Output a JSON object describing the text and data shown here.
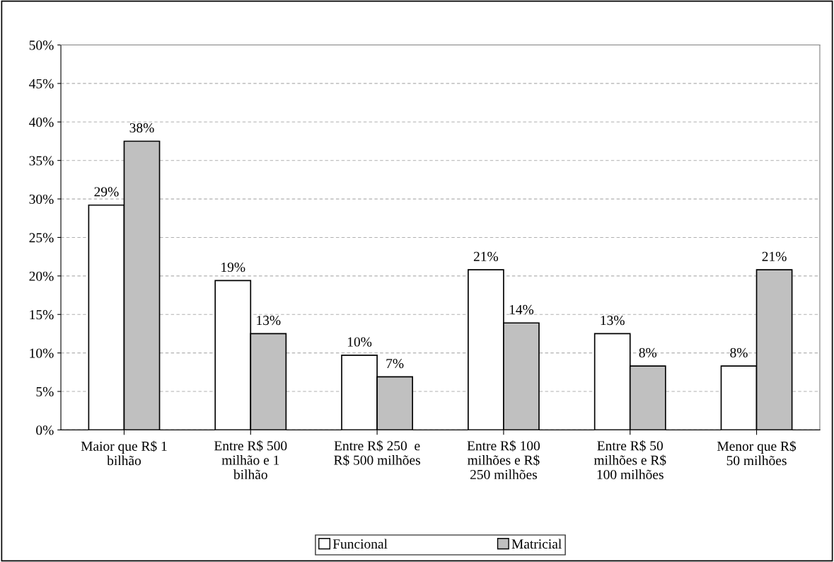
{
  "chart_data": {
    "type": "bar",
    "categories": [
      "Maior que R$ 1\nbilhão",
      "Entre R$ 500\nmilhão e 1\nbilhão",
      "Entre R$ 250  e\nR$ 500 milhões",
      "Entre R$ 100\nmilhões e R$\n250 milhões",
      "Entre R$ 50\nmilhões e R$\n100 milhões",
      "Menor que R$\n50 milhões"
    ],
    "series": [
      {
        "name": "Funcional",
        "color": "#ffffff",
        "values": [
          29.2,
          19.4,
          9.7,
          20.8,
          12.5,
          8.3
        ],
        "value_labels": [
          "29%",
          "19%",
          "10%",
          "21%",
          "13%",
          "8%"
        ]
      },
      {
        "name": "Matricial",
        "color": "#c0c0c0",
        "values": [
          37.5,
          12.5,
          6.9,
          13.9,
          8.3,
          20.8
        ],
        "value_labels": [
          "38%",
          "13%",
          "7%",
          "14%",
          "8%",
          "21%"
        ]
      }
    ],
    "ylim": [
      0,
      50
    ],
    "yticks": [
      {
        "value": 0,
        "label": "0%"
      },
      {
        "value": 5,
        "label": "5%"
      },
      {
        "value": 10,
        "label": "10%"
      },
      {
        "value": 15,
        "label": "15%"
      },
      {
        "value": 20,
        "label": "20%"
      },
      {
        "value": 25,
        "label": "25%"
      },
      {
        "value": 30,
        "label": "30%"
      },
      {
        "value": 35,
        "label": "35%"
      },
      {
        "value": 40,
        "label": "40%"
      },
      {
        "value": 45,
        "label": "45%"
      },
      {
        "value": 50,
        "label": "50%"
      }
    ],
    "grid": "y",
    "legend": "bottom"
  }
}
